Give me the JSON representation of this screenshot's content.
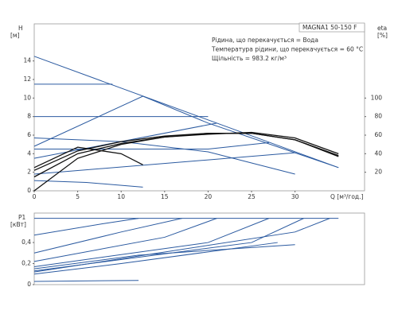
{
  "chart_data": [
    {
      "type": "line",
      "title": "MAGNA1 50-150 F",
      "annotations": [
        "Рідина, що перекачується = Вода",
        "Температура рідини, що перекачується = 60 °C",
        "Щільність = 983.2 кг/м³"
      ],
      "ylabel": "H",
      "ylabel_unit": "[м]",
      "y2label": "eta",
      "y2label_unit": "[%]",
      "xlabel": "Q [м³/год.]",
      "xlim": [
        0,
        38
      ],
      "xticks": [
        0,
        5,
        10,
        15,
        20,
        25,
        30
      ],
      "ylim": [
        0,
        18
      ],
      "yticks": [
        0,
        2,
        4,
        6,
        8,
        10,
        12,
        14
      ],
      "y2lim": [
        0,
        180
      ],
      "y2ticks": [
        20,
        40,
        60,
        80,
        100
      ],
      "series": [
        {
          "color": "#2b5aa0",
          "x": [
            0,
            35
          ],
          "values": [
            14.5,
            2.5
          ]
        },
        {
          "color": "#2b5aa0",
          "x": [
            0,
            9
          ],
          "values": [
            11.5,
            11.5
          ]
        },
        {
          "color": "#2b5aa0",
          "x": [
            0,
            20
          ],
          "values": [
            8,
            8
          ]
        },
        {
          "color": "#2b5aa0",
          "x": [
            0,
            20,
            27
          ],
          "values": [
            4.5,
            4.5,
            5.2
          ]
        },
        {
          "color": "#2b5aa0",
          "x": [
            0,
            12.5
          ],
          "values": [
            4.8,
            10.2
          ]
        },
        {
          "color": "#2b5aa0",
          "x": [
            0,
            21
          ],
          "values": [
            3.5,
            7.3
          ]
        },
        {
          "color": "#2b5aa0",
          "x": [
            0,
            30
          ],
          "values": [
            1.8,
            4.1
          ]
        },
        {
          "color": "#2b5aa0",
          "x": [
            12.5,
            20,
            35
          ],
          "values": [
            10.2,
            7.3,
            2.5
          ]
        },
        {
          "color": "#2b5aa0",
          "x": [
            0,
            10,
            20,
            30
          ],
          "values": [
            5.7,
            5.3,
            4.2,
            1.8
          ]
        },
        {
          "color": "#2b5aa0",
          "x": [
            0,
            6,
            12.5
          ],
          "values": [
            1.1,
            0.9,
            0.4
          ]
        },
        {
          "color": "#111111",
          "x": [
            0,
            5,
            10,
            15,
            20,
            25,
            30,
            35
          ],
          "values": [
            2.2,
            4.3,
            5.3,
            5.9,
            6.2,
            6.2,
            5.5,
            3.8
          ]
        },
        {
          "color": "#111111",
          "x": [
            0,
            5,
            10,
            15,
            20,
            25,
            30,
            35
          ],
          "values": [
            1.5,
            4.0,
            5.1,
            5.8,
            6.1,
            6.3,
            5.7,
            4.0
          ]
        },
        {
          "color": "#111111",
          "x": [
            0,
            5,
            10,
            12.5
          ],
          "values": [
            2.5,
            4.7,
            4.0,
            2.8
          ]
        },
        {
          "color": "#111111",
          "axis": "y2",
          "x": [
            0,
            5,
            10,
            15,
            20,
            25,
            30,
            35
          ],
          "values": [
            0,
            35,
            50,
            58,
            62,
            62,
            55,
            37
          ]
        }
      ]
    },
    {
      "type": "line",
      "ylabel": "P1",
      "ylabel_unit": "[кВт]",
      "xlim": [
        0,
        38
      ],
      "ylim": [
        0,
        0.68
      ],
      "yticks": [
        0,
        {
          "value": 0.2,
          "label": "0,2"
        },
        {
          "value": 0.4,
          "label": "0,4"
        }
      ],
      "series": [
        {
          "color": "#2b5aa0",
          "x": [
            0,
            35
          ],
          "values": [
            0.63,
            0.63
          ]
        },
        {
          "color": "#2b5aa0",
          "x": [
            0,
            8,
            12
          ],
          "values": [
            0.47,
            0.58,
            0.63
          ]
        },
        {
          "color": "#2b5aa0",
          "x": [
            0,
            10,
            17
          ],
          "values": [
            0.3,
            0.5,
            0.63
          ]
        },
        {
          "color": "#2b5aa0",
          "x": [
            0,
            15,
            21
          ],
          "values": [
            0.22,
            0.45,
            0.63
          ]
        },
        {
          "color": "#2b5aa0",
          "x": [
            0,
            20,
            27
          ],
          "values": [
            0.17,
            0.4,
            0.63
          ]
        },
        {
          "color": "#2b5aa0",
          "x": [
            0,
            25,
            31
          ],
          "values": [
            0.13,
            0.4,
            0.63
          ]
        },
        {
          "color": "#2b5aa0",
          "x": [
            0,
            30,
            34
          ],
          "values": [
            0.12,
            0.5,
            0.63
          ]
        },
        {
          "color": "#2b5aa0",
          "x": [
            0,
            12,
            30
          ],
          "values": [
            0.15,
            0.28,
            0.38
          ]
        },
        {
          "color": "#2b5aa0",
          "x": [
            0,
            10,
            28
          ],
          "values": [
            0.1,
            0.2,
            0.4
          ]
        },
        {
          "color": "#2b5aa0",
          "x": [
            0,
            12
          ],
          "values": [
            0.03,
            0.04
          ]
        }
      ]
    }
  ]
}
